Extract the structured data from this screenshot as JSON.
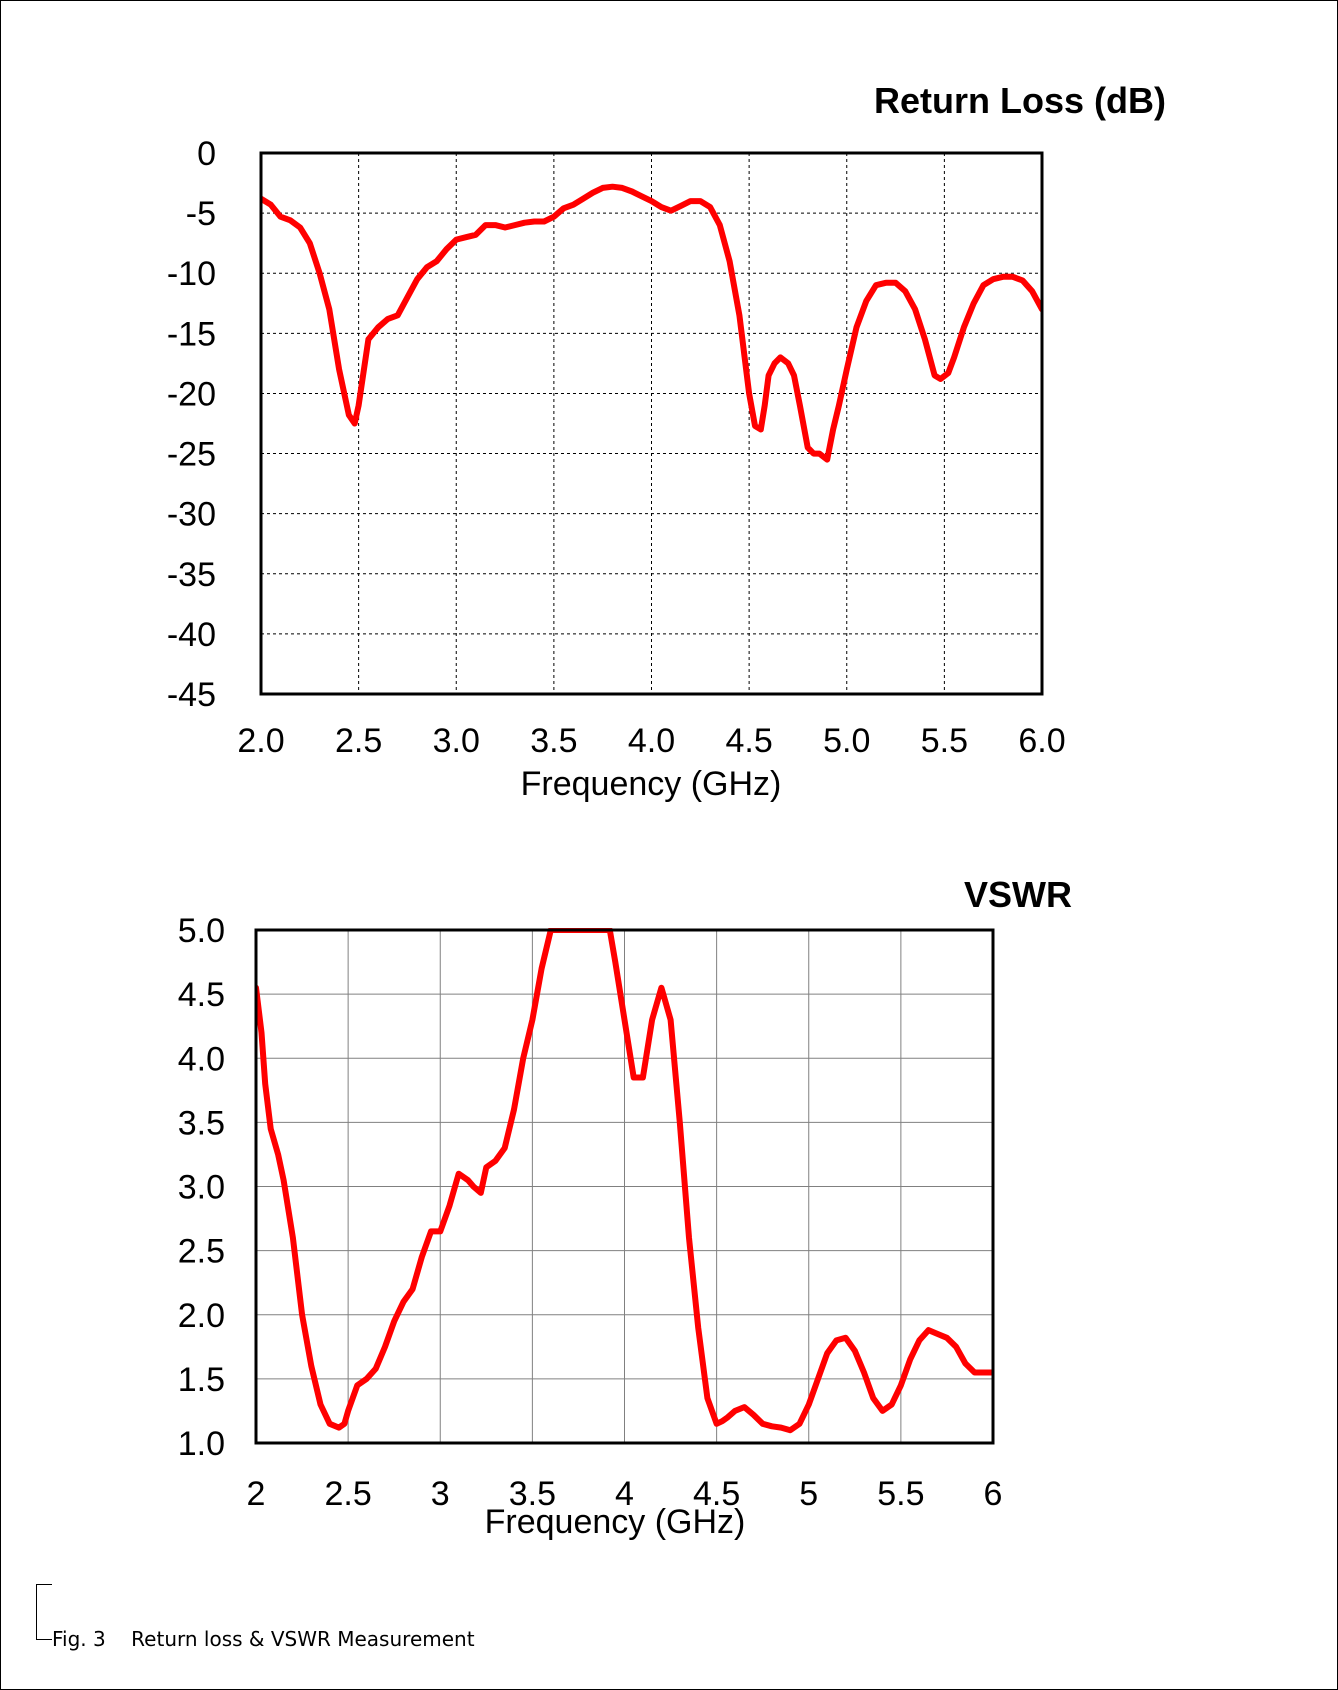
{
  "chart_data": [
    {
      "type": "line",
      "title": "Return Loss (dB)",
      "xlabel": "Frequency (GHz)",
      "ylabel": "",
      "xlim": [
        2.0,
        6.0
      ],
      "ylim": [
        -45,
        0
      ],
      "x_ticks": [
        "2.0",
        "2.5",
        "3.0",
        "3.5",
        "4.0",
        "4.5",
        "5.0",
        "5.5",
        "6.0"
      ],
      "y_ticks": [
        "0",
        "-5",
        "-10",
        "-15",
        "-20",
        "-25",
        "-30",
        "-35",
        "-40",
        "-45"
      ],
      "grid": true,
      "color": "#ff0000",
      "series": [
        {
          "x": [
            2.0,
            2.05,
            2.1,
            2.15,
            2.2,
            2.25,
            2.3,
            2.35,
            2.4,
            2.45,
            2.48,
            2.5,
            2.55,
            2.6,
            2.65,
            2.7,
            2.75,
            2.8,
            2.85,
            2.9,
            2.95,
            3.0,
            3.05,
            3.1,
            3.15,
            3.2,
            3.25,
            3.3,
            3.35,
            3.4,
            3.45,
            3.5,
            3.55,
            3.6,
            3.65,
            3.7,
            3.75,
            3.8,
            3.85,
            3.9,
            3.95,
            4.0,
            4.05,
            4.1,
            4.15,
            4.2,
            4.25,
            4.3,
            4.35,
            4.4,
            4.45,
            4.5,
            4.53,
            4.56,
            4.58,
            4.6,
            4.63,
            4.66,
            4.7,
            4.73,
            4.76,
            4.8,
            4.83,
            4.86,
            4.9,
            4.93,
            4.96,
            5.0,
            5.05,
            5.1,
            5.15,
            5.2,
            5.25,
            5.3,
            5.35,
            5.4,
            5.45,
            5.48,
            5.52,
            5.55,
            5.6,
            5.65,
            5.7,
            5.75,
            5.8,
            5.85,
            5.9,
            5.95,
            6.0
          ],
          "values": [
            -3.8,
            -4.3,
            -5.3,
            -5.6,
            -6.2,
            -7.5,
            -10.0,
            -13.0,
            -18.0,
            -21.8,
            -22.5,
            -21.0,
            -15.5,
            -14.5,
            -13.8,
            -13.5,
            -12.0,
            -10.5,
            -9.5,
            -9.0,
            -8.0,
            -7.2,
            -7.0,
            -6.8,
            -6.0,
            -6.0,
            -6.2,
            -6.0,
            -5.8,
            -5.7,
            -5.7,
            -5.3,
            -4.6,
            -4.3,
            -3.8,
            -3.3,
            -2.9,
            -2.8,
            -2.9,
            -3.2,
            -3.6,
            -4.0,
            -4.5,
            -4.8,
            -4.4,
            -4.0,
            -4.0,
            -4.5,
            -6.0,
            -9.0,
            -13.5,
            -20.0,
            -22.7,
            -23.0,
            -21.0,
            -18.5,
            -17.5,
            -17.0,
            -17.5,
            -18.5,
            -21.0,
            -24.5,
            -25.0,
            -25.0,
            -25.5,
            -23.0,
            -21.0,
            -18.0,
            -14.5,
            -12.3,
            -11.0,
            -10.8,
            -10.8,
            -11.5,
            -13.0,
            -15.5,
            -18.5,
            -18.8,
            -18.3,
            -17.0,
            -14.5,
            -12.5,
            -11.0,
            -10.5,
            -10.3,
            -10.3,
            -10.6,
            -11.5,
            -13.0
          ]
        }
      ]
    },
    {
      "type": "line",
      "title": "VSWR",
      "xlabel": "Frequency (GHz)",
      "ylabel": "",
      "xlim": [
        2,
        6
      ],
      "ylim": [
        1.0,
        5.0
      ],
      "x_ticks": [
        "2",
        "2.5",
        "3",
        "3.5",
        "4",
        "4.5",
        "5",
        "5.5",
        "6"
      ],
      "y_ticks": [
        "5.0",
        "4.5",
        "4.0",
        "3.5",
        "3.0",
        "2.5",
        "2.0",
        "1.5",
        "1.0"
      ],
      "grid": true,
      "color": "#ff0000",
      "series": [
        {
          "x": [
            2.0,
            2.03,
            2.05,
            2.08,
            2.12,
            2.15,
            2.2,
            2.25,
            2.3,
            2.35,
            2.4,
            2.45,
            2.48,
            2.5,
            2.55,
            2.6,
            2.65,
            2.7,
            2.75,
            2.8,
            2.85,
            2.9,
            2.95,
            3.0,
            3.05,
            3.1,
            3.15,
            3.18,
            3.22,
            3.25,
            3.3,
            3.35,
            3.4,
            3.45,
            3.5,
            3.55,
            3.6,
            3.63,
            3.66,
            3.68,
            3.92,
            3.95,
            4.0,
            4.05,
            4.1,
            4.15,
            4.2,
            4.25,
            4.3,
            4.35,
            4.4,
            4.45,
            4.5,
            4.53,
            4.56,
            4.6,
            4.65,
            4.7,
            4.75,
            4.8,
            4.85,
            4.9,
            4.95,
            5.0,
            5.05,
            5.1,
            5.15,
            5.2,
            5.25,
            5.3,
            5.35,
            5.4,
            5.45,
            5.5,
            5.55,
            5.6,
            5.65,
            5.7,
            5.75,
            5.8,
            5.85,
            5.9,
            5.95,
            6.0
          ],
          "values": [
            4.55,
            4.2,
            3.8,
            3.45,
            3.25,
            3.05,
            2.6,
            2.0,
            1.6,
            1.3,
            1.15,
            1.12,
            1.15,
            1.25,
            1.45,
            1.5,
            1.58,
            1.75,
            1.95,
            2.1,
            2.2,
            2.45,
            2.65,
            2.65,
            2.85,
            3.1,
            3.05,
            3.0,
            2.95,
            3.15,
            3.2,
            3.3,
            3.6,
            4.0,
            4.3,
            4.7,
            5.0,
            5.0,
            5.0,
            5.0,
            5.0,
            4.75,
            4.3,
            3.85,
            3.85,
            4.3,
            4.55,
            4.3,
            3.5,
            2.6,
            1.9,
            1.35,
            1.15,
            1.17,
            1.2,
            1.25,
            1.28,
            1.22,
            1.15,
            1.13,
            1.12,
            1.1,
            1.15,
            1.3,
            1.5,
            1.7,
            1.8,
            1.82,
            1.72,
            1.55,
            1.35,
            1.25,
            1.3,
            1.45,
            1.65,
            1.8,
            1.88,
            1.85,
            1.82,
            1.75,
            1.62,
            1.55,
            1.55,
            1.55
          ]
        }
      ]
    }
  ],
  "caption": "Fig. 3    Return loss & VSWR Measurement",
  "colors": {
    "series": "#ff0000",
    "axes": "#000000",
    "background": "#ffffff"
  }
}
